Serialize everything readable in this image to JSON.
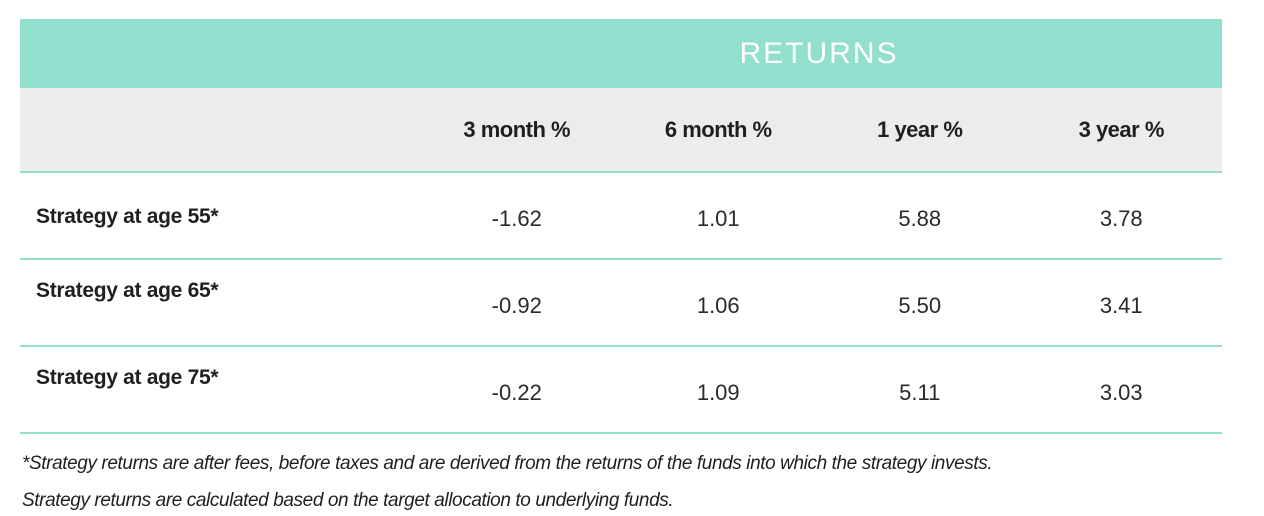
{
  "table": {
    "group_header": "RETURNS",
    "columns": [
      "3 month %",
      "6 month %",
      "1 year %",
      "3 year %"
    ],
    "rows": [
      {
        "label": "Strategy at age 55*",
        "values": [
          "-1.62",
          "1.01",
          "5.88",
          "3.78"
        ]
      },
      {
        "label": "Strategy at age 65*",
        "values": [
          "-0.92",
          "1.06",
          "5.50",
          "3.41"
        ]
      },
      {
        "label": "Strategy at age 75*",
        "values": [
          "-0.22",
          "1.09",
          "5.11",
          "3.03"
        ]
      }
    ]
  },
  "footnotes": [
    "*Strategy returns are after fees, before taxes and are derived from the returns of the funds into which the strategy invests.",
    "Strategy returns are calculated based on the target allocation to underlying funds."
  ],
  "colors": {
    "accent": "#92dfce",
    "header_bg": "#ececec",
    "title_text": "#ffffff"
  }
}
